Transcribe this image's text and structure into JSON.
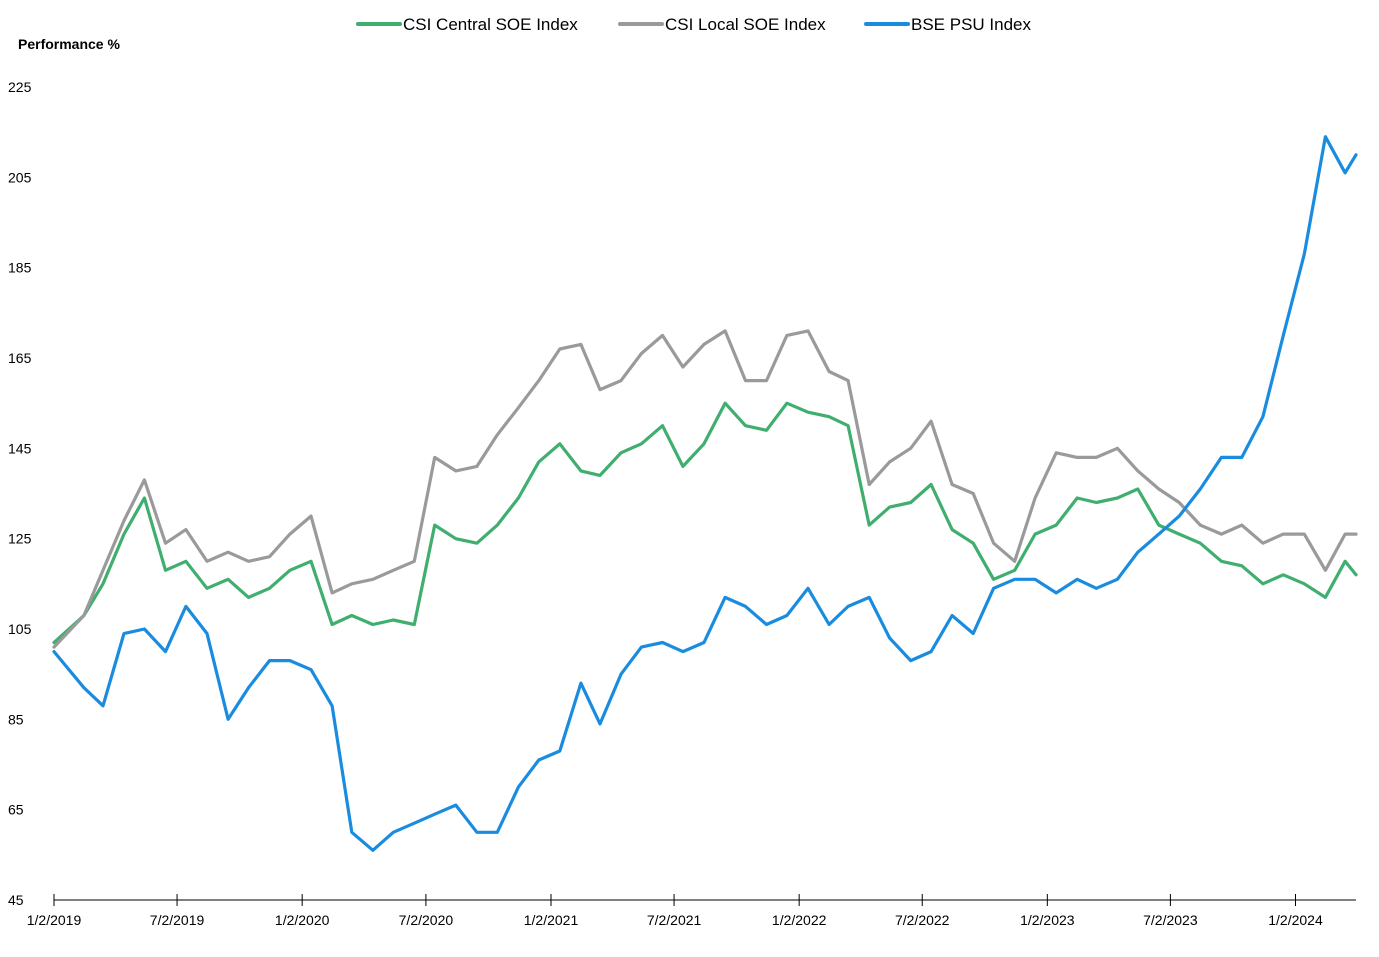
{
  "chart_data": {
    "type": "line",
    "title": "",
    "xlabel": "",
    "ylabel": "Performance %",
    "ylim": [
      45,
      225
    ],
    "yticks": [
      "225",
      "205",
      "185",
      "165",
      "145",
      "125",
      "105",
      "85",
      "65",
      "45"
    ],
    "xticks": [
      "1/2/2019",
      "7/2/2019",
      "1/2/2020",
      "7/2/2020",
      "1/2/2021",
      "7/2/2021",
      "1/2/2022",
      "7/2/2022",
      "1/2/2023",
      "7/2/2023",
      "1/2/2024"
    ],
    "grid": false,
    "legend_position": "top-center",
    "x": [
      "2019-01-02",
      "2019-02-15",
      "2019-03-15",
      "2019-04-15",
      "2019-05-15",
      "2019-06-15",
      "2019-07-15",
      "2019-08-15",
      "2019-09-15",
      "2019-10-15",
      "2019-11-15",
      "2019-12-15",
      "2020-01-15",
      "2020-02-15",
      "2020-03-15",
      "2020-04-15",
      "2020-05-15",
      "2020-06-15",
      "2020-07-15",
      "2020-08-15",
      "2020-09-15",
      "2020-10-15",
      "2020-11-15",
      "2020-12-15",
      "2021-01-15",
      "2021-02-15",
      "2021-03-15",
      "2021-04-15",
      "2021-05-15",
      "2021-06-15",
      "2021-07-15",
      "2021-08-15",
      "2021-09-15",
      "2021-10-15",
      "2021-11-15",
      "2021-12-15",
      "2022-01-15",
      "2022-02-15",
      "2022-03-15",
      "2022-04-15",
      "2022-05-15",
      "2022-06-15",
      "2022-07-15",
      "2022-08-15",
      "2022-09-15",
      "2022-10-15",
      "2022-11-15",
      "2022-12-15",
      "2023-01-15",
      "2023-02-15",
      "2023-03-15",
      "2023-04-15",
      "2023-05-15",
      "2023-06-15",
      "2023-07-15",
      "2023-08-15",
      "2023-09-15",
      "2023-10-15",
      "2023-11-15",
      "2023-12-15",
      "2024-01-15",
      "2024-02-15",
      "2024-03-15",
      "2024-03-31"
    ],
    "series": [
      {
        "name": "CSI Central SOE Index",
        "color": "#3fae6e",
        "values": [
          102,
          108,
          115,
          126,
          134,
          118,
          120,
          114,
          116,
          112,
          114,
          118,
          120,
          106,
          108,
          106,
          107,
          106,
          128,
          125,
          124,
          128,
          134,
          142,
          146,
          140,
          139,
          144,
          146,
          150,
          141,
          146,
          155,
          150,
          149,
          155,
          153,
          152,
          150,
          128,
          132,
          133,
          137,
          127,
          124,
          116,
          118,
          126,
          128,
          134,
          133,
          134,
          136,
          128,
          126,
          124,
          120,
          119,
          115,
          117,
          115,
          112,
          120,
          117
        ],
        "labels": []
      },
      {
        "name": "CSI Local SOE Index",
        "color": "#9a9a9a",
        "values": [
          101,
          108,
          118,
          129,
          138,
          124,
          127,
          120,
          122,
          120,
          121,
          126,
          130,
          113,
          115,
          116,
          118,
          120,
          143,
          140,
          141,
          148,
          154,
          160,
          167,
          168,
          158,
          160,
          166,
          170,
          163,
          168,
          171,
          160,
          160,
          170,
          171,
          162,
          160,
          137,
          142,
          145,
          151,
          137,
          135,
          124,
          120,
          134,
          144,
          143,
          143,
          145,
          140,
          136,
          133,
          128,
          126,
          128,
          124,
          126,
          126,
          118,
          126,
          126
        ],
        "labels": []
      },
      {
        "name": "BSE PSU Index",
        "color": "#1a8ce0",
        "values": [
          100,
          92,
          88,
          104,
          105,
          100,
          110,
          104,
          85,
          92,
          98,
          98,
          96,
          88,
          60,
          56,
          60,
          62,
          64,
          66,
          60,
          60,
          70,
          76,
          78,
          93,
          84,
          95,
          101,
          102,
          100,
          102,
          112,
          110,
          106,
          108,
          114,
          106,
          110,
          112,
          103,
          98,
          100,
          108,
          104,
          114,
          116,
          116,
          113,
          116,
          114,
          116,
          122,
          126,
          130,
          136,
          143,
          143,
          152,
          170,
          188,
          214,
          206,
          210
        ],
        "labels": []
      }
    ]
  }
}
